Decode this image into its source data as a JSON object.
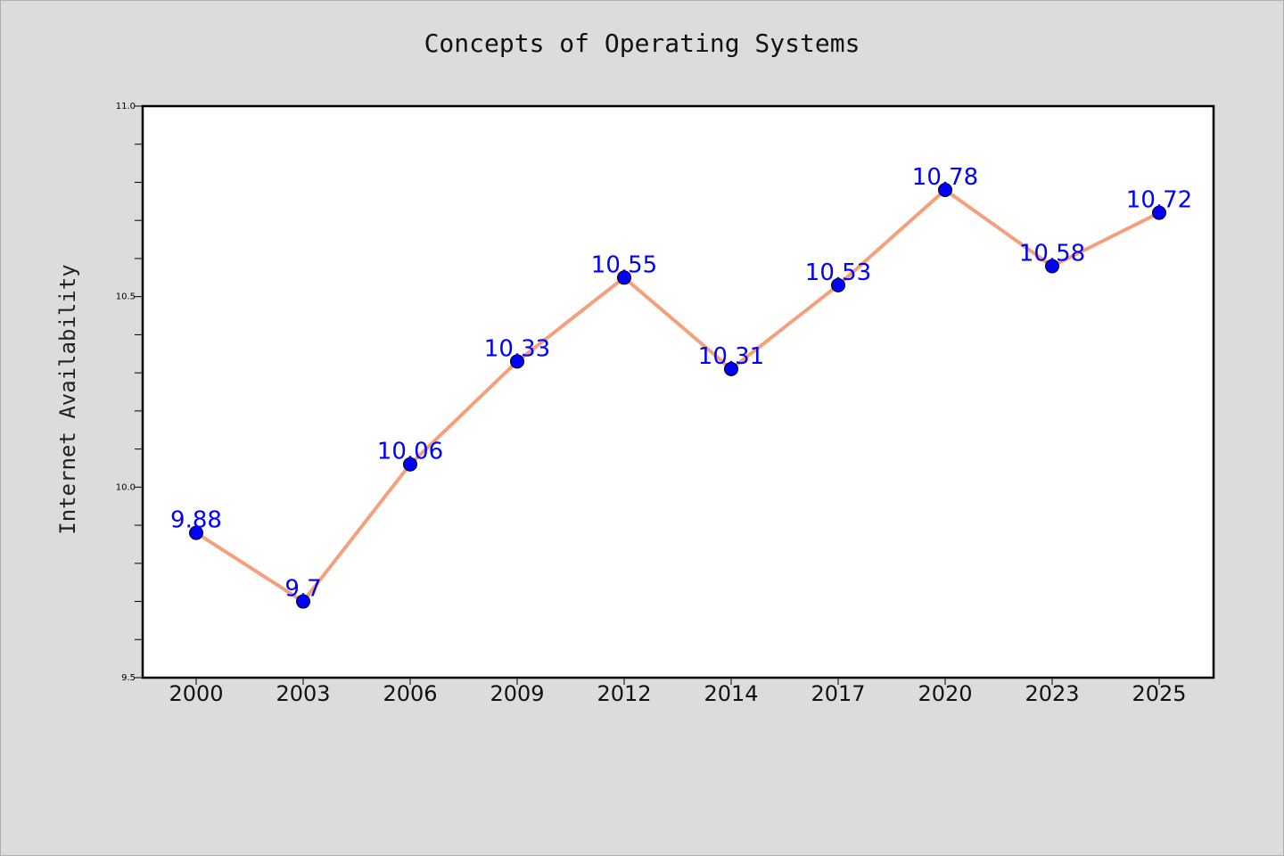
{
  "chart_data": {
    "type": "line",
    "title": "Concepts of Operating Systems",
    "xlabel": "",
    "ylabel": "Internet Availability",
    "categories": [
      "2000",
      "2003",
      "2006",
      "2009",
      "2012",
      "2014",
      "2017",
      "2020",
      "2023",
      "2025"
    ],
    "values": [
      9.88,
      9.7,
      10.06,
      10.33,
      10.55,
      10.31,
      10.53,
      10.78,
      10.58,
      10.72
    ],
    "data_labels": [
      "9.88",
      "9.7",
      "10.06",
      "10.33",
      "10.55",
      "10.31",
      "10.53",
      "10.78",
      "10.58",
      "10.72"
    ],
    "ylim": [
      9.5,
      11.0
    ],
    "y_major_ticks": [
      "9.5",
      "10.0",
      "10.5",
      "11.0"
    ],
    "y_minor_step": 0.1,
    "grid": false,
    "line_color": "#f4a07c",
    "marker_color": "#0000ff",
    "label_color": "#0000ff",
    "background_color": "#dcdcdc",
    "plot_background": "#ffffff"
  }
}
